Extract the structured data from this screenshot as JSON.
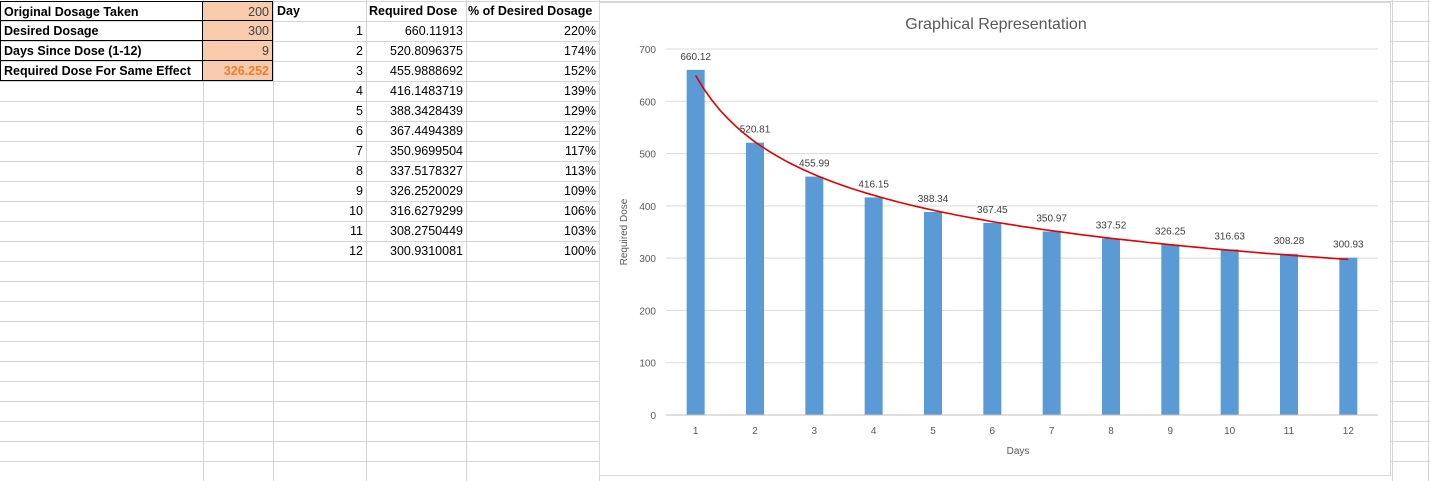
{
  "inputs": {
    "original_label": "Original Dosage Taken",
    "original_value": "200",
    "desired_label": "Desired Dosage",
    "desired_value": "300",
    "days_label": "Days Since Dose (1-12)",
    "days_value": "9",
    "required_label": "Required Dose For Same Effect",
    "required_value": "326.252"
  },
  "table": {
    "headers": [
      "Day",
      "Required Dose",
      "% of Desired Dosage"
    ],
    "rows": [
      [
        "1",
        "660.11913",
        "220%"
      ],
      [
        "2",
        "520.8096375",
        "174%"
      ],
      [
        "3",
        "455.9888692",
        "152%"
      ],
      [
        "4",
        "416.1483719",
        "139%"
      ],
      [
        "5",
        "388.3428439",
        "129%"
      ],
      [
        "6",
        "367.4494389",
        "122%"
      ],
      [
        "7",
        "350.9699504",
        "117%"
      ],
      [
        "8",
        "337.5178327",
        "113%"
      ],
      [
        "9",
        "326.2520029",
        "109%"
      ],
      [
        "10",
        "316.6279299",
        "106%"
      ],
      [
        "11",
        "308.2750449",
        "103%"
      ],
      [
        "12",
        "300.9310081",
        "100%"
      ]
    ]
  },
  "colors": {
    "bar": "#5b9bd5",
    "trendline": "#e00000",
    "input_fill": "#f8cbad",
    "output_text": "#ed7d31"
  },
  "chart_data": {
    "type": "bar",
    "title": "Graphical Representation",
    "xlabel": "Days",
    "ylabel": "Required Dose",
    "categories": [
      "1",
      "2",
      "3",
      "4",
      "5",
      "6",
      "7",
      "8",
      "9",
      "10",
      "11",
      "12"
    ],
    "values": [
      660.12,
      520.81,
      455.99,
      416.15,
      388.34,
      367.45,
      350.97,
      337.52,
      326.25,
      316.63,
      308.28,
      300.93
    ],
    "data_labels": [
      "660.12",
      "520.81",
      "455.99",
      "416.15",
      "388.34",
      "367.45",
      "350.97",
      "337.52",
      "326.25",
      "316.63",
      "308.28",
      "300.93"
    ],
    "ylim": [
      0,
      700
    ],
    "yticks": [
      "0",
      "100",
      "200",
      "300",
      "400",
      "500",
      "600",
      "700"
    ],
    "grid": true,
    "legend": "none",
    "trendline": "power"
  }
}
